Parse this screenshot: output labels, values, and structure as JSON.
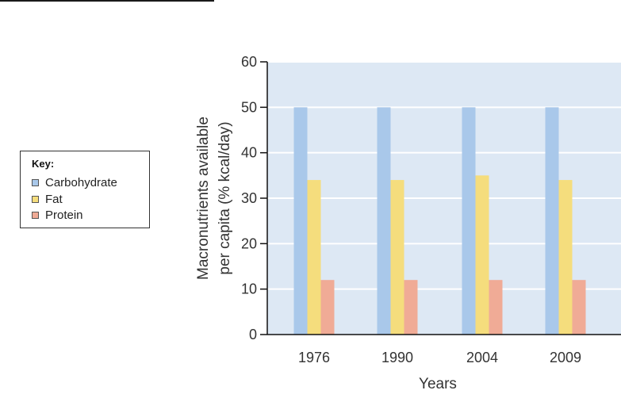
{
  "chart_data": {
    "type": "bar",
    "categories": [
      "1976",
      "1990",
      "2004",
      "2009"
    ],
    "series": [
      {
        "name": "Carbohydrate",
        "values": [
          50,
          50,
          50,
          50
        ],
        "color": "#a9c8ea"
      },
      {
        "name": "Fat",
        "values": [
          34,
          34,
          35,
          34
        ],
        "color": "#f5dd7d"
      },
      {
        "name": "Protein",
        "values": [
          12,
          12,
          12,
          12
        ],
        "color": "#f0ab96"
      }
    ],
    "xlabel": "Years",
    "ylabel_lines": [
      "Macronutrients available",
      "per capita (% kcal/day)"
    ],
    "ylim": [
      0,
      60
    ],
    "yticks": [
      0,
      10,
      20,
      30,
      40,
      50,
      60
    ],
    "grid": true,
    "legend_position": "left",
    "plot_background": "#dde8f4",
    "grid_color": "#ffffff"
  },
  "legend": {
    "title": "Key:",
    "items": [
      {
        "label": "Carbohydrate",
        "color": "#a9c8ea"
      },
      {
        "label": "Fat",
        "color": "#f5dd7d"
      },
      {
        "label": "Protein",
        "color": "#f0ab96"
      }
    ]
  }
}
